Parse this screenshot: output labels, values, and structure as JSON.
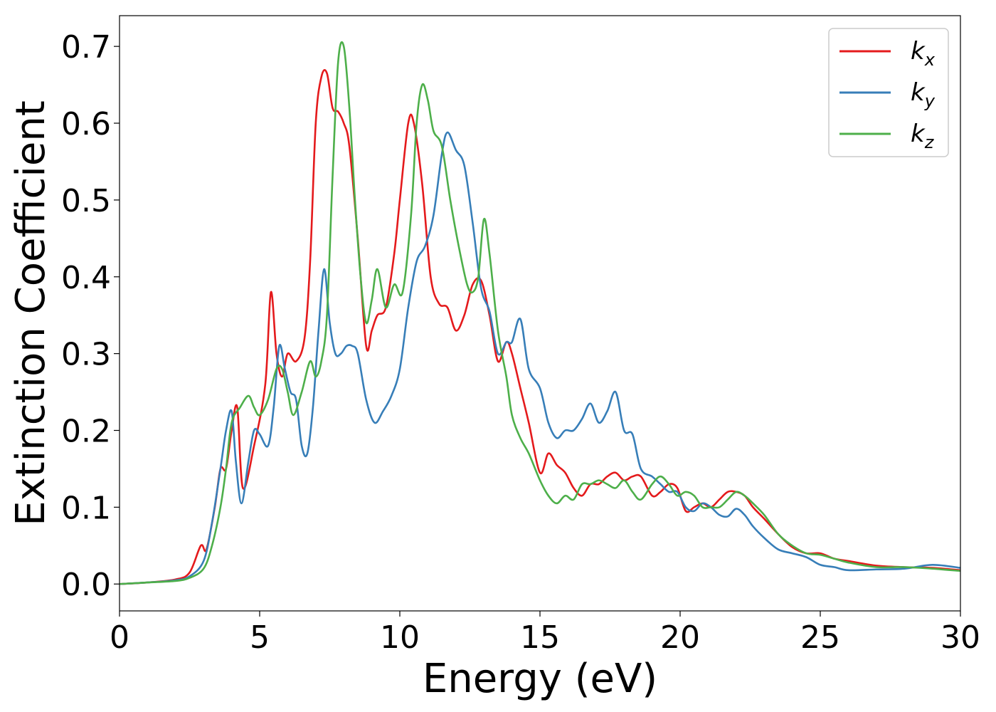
{
  "chart_data": {
    "type": "line",
    "title": "",
    "xlabel": "Energy (eV)",
    "ylabel": "Extinction Coefficient",
    "xlim": [
      0,
      30
    ],
    "ylim": [
      -0.035,
      0.74
    ],
    "x_ticks": [
      0,
      5,
      10,
      15,
      20,
      25,
      30
    ],
    "x_tick_labels": [
      "0",
      "5",
      "10",
      "15",
      "20",
      "25",
      "30"
    ],
    "y_ticks": [
      0.0,
      0.1,
      0.2,
      0.3,
      0.4,
      0.5,
      0.6,
      0.7
    ],
    "y_tick_labels": [
      "0.0",
      "0.1",
      "0.2",
      "0.3",
      "0.4",
      "0.5",
      "0.6",
      "0.7"
    ],
    "grid": false,
    "legend_position": "top-right",
    "series": [
      {
        "name": "kx",
        "label_base": "k",
        "label_sub": "x",
        "color": "#e41a1c",
        "x": [
          0,
          1,
          2,
          2.5,
          2.9,
          3.1,
          3.4,
          3.6,
          3.8,
          4.0,
          4.2,
          4.4,
          4.8,
          5.2,
          5.4,
          5.6,
          5.8,
          6.0,
          6.3,
          6.6,
          6.8,
          7.0,
          7.2,
          7.4,
          7.6,
          7.8,
          8.0,
          8.2,
          8.5,
          8.8,
          9.0,
          9.2,
          9.5,
          9.8,
          10.0,
          10.3,
          10.5,
          10.8,
          11.1,
          11.4,
          11.7,
          12.0,
          12.3,
          12.6,
          12.9,
          13.2,
          13.5,
          13.8,
          14.0,
          14.3,
          14.6,
          15.0,
          15.3,
          15.6,
          15.9,
          16.2,
          16.5,
          16.8,
          17.1,
          17.4,
          17.7,
          18.0,
          18.3,
          18.6,
          19.0,
          19.3,
          19.6,
          19.9,
          20.2,
          20.5,
          20.8,
          21.1,
          21.4,
          21.7,
          22.0,
          22.3,
          22.6,
          23.0,
          23.5,
          24.0,
          24.5,
          25.0,
          25.5,
          26.0,
          27.0,
          28.0,
          29.0,
          30.0
        ],
        "values": [
          0.0,
          0.002,
          0.006,
          0.015,
          0.05,
          0.045,
          0.1,
          0.15,
          0.15,
          0.2,
          0.23,
          0.125,
          0.18,
          0.26,
          0.38,
          0.3,
          0.27,
          0.3,
          0.29,
          0.32,
          0.42,
          0.6,
          0.66,
          0.665,
          0.62,
          0.615,
          0.6,
          0.57,
          0.45,
          0.31,
          0.33,
          0.35,
          0.36,
          0.43,
          0.5,
          0.6,
          0.6,
          0.52,
          0.4,
          0.365,
          0.36,
          0.33,
          0.35,
          0.39,
          0.395,
          0.35,
          0.29,
          0.315,
          0.3,
          0.255,
          0.21,
          0.145,
          0.17,
          0.155,
          0.145,
          0.125,
          0.115,
          0.13,
          0.13,
          0.14,
          0.145,
          0.135,
          0.14,
          0.14,
          0.115,
          0.12,
          0.13,
          0.125,
          0.095,
          0.1,
          0.105,
          0.1,
          0.11,
          0.12,
          0.12,
          0.115,
          0.1,
          0.085,
          0.065,
          0.048,
          0.04,
          0.04,
          0.033,
          0.03,
          0.024,
          0.022,
          0.021,
          0.018
        ]
      },
      {
        "name": "ky",
        "label_base": "k",
        "label_sub": "y",
        "color": "#377eb8",
        "x": [
          0,
          1,
          2,
          2.5,
          3.0,
          3.3,
          3.6,
          3.8,
          4.0,
          4.15,
          4.35,
          4.6,
          4.8,
          5.0,
          5.3,
          5.5,
          5.7,
          5.9,
          6.1,
          6.3,
          6.5,
          6.7,
          6.9,
          7.1,
          7.3,
          7.5,
          7.7,
          7.9,
          8.1,
          8.3,
          8.5,
          8.8,
          9.1,
          9.4,
          9.7,
          10.0,
          10.3,
          10.6,
          10.9,
          11.2,
          11.5,
          11.7,
          12.0,
          12.3,
          12.6,
          12.9,
          13.2,
          13.5,
          13.8,
          14.0,
          14.3,
          14.6,
          15.0,
          15.3,
          15.6,
          15.9,
          16.2,
          16.5,
          16.8,
          17.1,
          17.4,
          17.7,
          18.0,
          18.3,
          18.6,
          19.0,
          19.3,
          19.6,
          19.9,
          20.2,
          20.5,
          20.8,
          21.1,
          21.4,
          21.7,
          22.0,
          22.3,
          22.6,
          23.0,
          23.5,
          24.0,
          24.5,
          25.0,
          25.5,
          26.0,
          27.0,
          28.0,
          29.0,
          30.0
        ],
        "values": [
          0.0,
          0.002,
          0.005,
          0.01,
          0.03,
          0.08,
          0.15,
          0.2,
          0.225,
          0.16,
          0.105,
          0.16,
          0.2,
          0.195,
          0.18,
          0.23,
          0.31,
          0.28,
          0.25,
          0.24,
          0.18,
          0.17,
          0.23,
          0.33,
          0.41,
          0.34,
          0.3,
          0.3,
          0.31,
          0.31,
          0.3,
          0.24,
          0.21,
          0.225,
          0.245,
          0.28,
          0.36,
          0.42,
          0.44,
          0.48,
          0.56,
          0.588,
          0.565,
          0.545,
          0.47,
          0.385,
          0.355,
          0.3,
          0.315,
          0.315,
          0.345,
          0.28,
          0.255,
          0.21,
          0.19,
          0.2,
          0.2,
          0.215,
          0.235,
          0.21,
          0.225,
          0.25,
          0.2,
          0.195,
          0.15,
          0.14,
          0.13,
          0.12,
          0.12,
          0.1,
          0.095,
          0.105,
          0.1,
          0.09,
          0.088,
          0.098,
          0.09,
          0.075,
          0.06,
          0.045,
          0.04,
          0.035,
          0.025,
          0.022,
          0.018,
          0.019,
          0.02,
          0.025,
          0.021
        ]
      },
      {
        "name": "kz",
        "label_base": "k",
        "label_sub": "z",
        "color": "#4daf4a",
        "x": [
          0,
          1,
          2,
          2.5,
          3.0,
          3.3,
          3.6,
          3.8,
          4.0,
          4.3,
          4.6,
          4.8,
          5.0,
          5.3,
          5.6,
          5.8,
          6.0,
          6.2,
          6.5,
          6.8,
          7.0,
          7.2,
          7.4,
          7.6,
          7.8,
          8.0,
          8.2,
          8.4,
          8.6,
          8.8,
          9.0,
          9.2,
          9.5,
          9.8,
          10.1,
          10.4,
          10.6,
          10.8,
          11.0,
          11.2,
          11.5,
          11.8,
          12.1,
          12.4,
          12.6,
          12.8,
          13.0,
          13.2,
          13.5,
          13.8,
          14.0,
          14.3,
          14.6,
          15.0,
          15.3,
          15.6,
          15.9,
          16.2,
          16.5,
          16.8,
          17.1,
          17.4,
          17.7,
          18.0,
          18.3,
          18.6,
          19.0,
          19.3,
          19.6,
          19.9,
          20.2,
          20.5,
          20.8,
          21.1,
          21.4,
          21.7,
          22.0,
          22.3,
          22.6,
          23.0,
          23.5,
          24.0,
          24.5,
          25.0,
          25.5,
          26.0,
          27.0,
          28.0,
          29.0,
          30.0
        ],
        "values": [
          0.0,
          0.002,
          0.004,
          0.008,
          0.02,
          0.05,
          0.1,
          0.15,
          0.21,
          0.23,
          0.245,
          0.23,
          0.22,
          0.24,
          0.28,
          0.28,
          0.25,
          0.22,
          0.25,
          0.29,
          0.27,
          0.29,
          0.35,
          0.53,
          0.68,
          0.7,
          0.62,
          0.5,
          0.4,
          0.34,
          0.37,
          0.41,
          0.36,
          0.39,
          0.38,
          0.48,
          0.6,
          0.65,
          0.63,
          0.59,
          0.57,
          0.5,
          0.44,
          0.39,
          0.38,
          0.4,
          0.475,
          0.43,
          0.33,
          0.27,
          0.22,
          0.19,
          0.17,
          0.135,
          0.115,
          0.105,
          0.115,
          0.11,
          0.13,
          0.13,
          0.135,
          0.13,
          0.125,
          0.135,
          0.12,
          0.11,
          0.13,
          0.14,
          0.13,
          0.115,
          0.12,
          0.115,
          0.1,
          0.1,
          0.1,
          0.11,
          0.12,
          0.115,
          0.105,
          0.09,
          0.065,
          0.05,
          0.04,
          0.038,
          0.033,
          0.028,
          0.022,
          0.022,
          0.02,
          0.017
        ]
      }
    ]
  }
}
